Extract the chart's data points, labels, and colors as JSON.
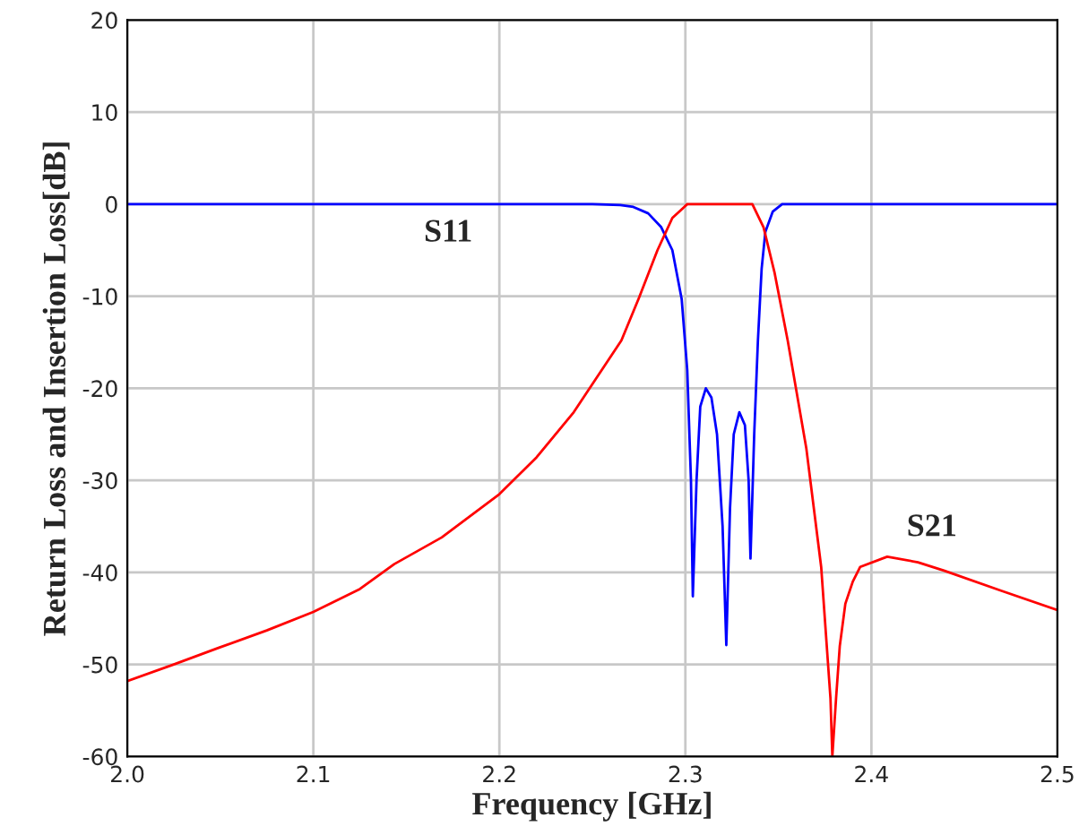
{
  "chart_data": {
    "type": "line",
    "xlabel": "Frequency [GHz]",
    "ylabel": "Return Loss and Insertion Loss[dB]",
    "xlim": [
      2.0,
      2.5
    ],
    "xticks": [
      {
        "value": 2.0,
        "label": "2.0"
      },
      2.1,
      2.2,
      2.3,
      2.4,
      {
        "value": 2.5,
        "label": "2.5"
      }
    ],
    "ylim": [
      -60,
      20
    ],
    "yticks": [
      -60,
      -50,
      -40,
      -30,
      -20,
      -10,
      0,
      10,
      20
    ],
    "grid": true,
    "legend": false,
    "marker": "none",
    "line_style": "solid",
    "series": [
      {
        "name": "S11",
        "color": "#0000ff",
        "x": [
          2.0,
          2.1,
          2.2,
          2.25,
          2.265,
          2.272,
          2.28,
          2.287,
          2.293,
          2.298,
          2.301,
          2.303,
          2.304,
          2.306,
          2.308,
          2.311,
          2.314,
          2.317,
          2.32,
          2.322,
          2.324,
          2.326,
          2.329,
          2.332,
          2.334,
          2.335,
          2.337,
          2.339,
          2.341,
          2.343,
          2.347,
          2.352,
          2.4,
          2.5
        ],
        "values": [
          0,
          0,
          0,
          0,
          -0.1,
          -0.3,
          -1,
          -2.5,
          -5,
          -10.3,
          -18,
          -30,
          -42.6,
          -30,
          -22,
          -20,
          -21,
          -25,
          -35,
          -47.9,
          -33,
          -25,
          -22.6,
          -24,
          -30,
          -38.5,
          -25,
          -14.8,
          -7,
          -3,
          -0.8,
          0,
          0,
          0
        ]
      },
      {
        "name": "S21",
        "color": "#ff0000",
        "x": [
          2.0,
          2.025,
          2.049,
          2.075,
          2.1,
          2.125,
          2.1435,
          2.169,
          2.2,
          2.22,
          2.24,
          2.2656,
          2.275,
          2.285,
          2.293,
          2.301,
          2.336,
          2.342,
          2.348,
          2.355,
          2.365,
          2.373,
          2.378,
          2.379,
          2.381,
          2.383,
          2.386,
          2.39,
          2.394,
          2.4085,
          2.425,
          2.439,
          2.47,
          2.5
        ],
        "values": [
          -51.8,
          -50,
          -48.2,
          -46.3,
          -44.3,
          -41.8,
          -39.1,
          -36.2,
          -31.5,
          -27.5,
          -22.6,
          -14.8,
          -10.2,
          -5,
          -1.5,
          0,
          0,
          -2.5,
          -7.5,
          -14.8,
          -26.5,
          -39.4,
          -53.7,
          -60,
          -53.7,
          -48,
          -43.4,
          -41,
          -39.4,
          -38.3,
          -38.9,
          -39.8,
          -42,
          -44.1
        ]
      }
    ]
  }
}
